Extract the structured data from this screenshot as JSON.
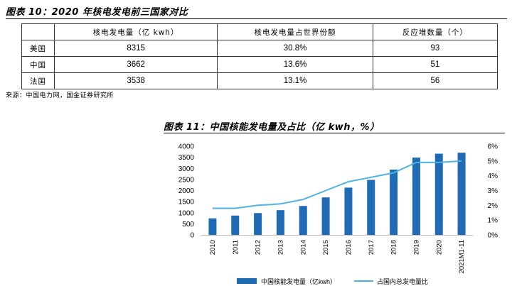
{
  "table10": {
    "title": "图表 10：2020 年核电发电前三国家对比",
    "headers": [
      "",
      "核电发电量（亿 kwh）",
      "核电发电量占世界份额",
      "反应堆数量（个）"
    ],
    "rows": [
      {
        "country": "美国",
        "generation": "8315",
        "share": "30.8%",
        "reactors": "93"
      },
      {
        "country": "中国",
        "generation": "3662",
        "share": "13.6%",
        "reactors": "51"
      },
      {
        "country": "法国",
        "generation": "3538",
        "share": "13.1%",
        "reactors": "56"
      }
    ],
    "source": "来源：中国电力网，国金证券研究所"
  },
  "chart_data": {
    "type": "bar",
    "title": "图表 11：中国核能发电量及占比（亿 kwh，%）",
    "categories": [
      "2010",
      "2011",
      "2012",
      "2013",
      "2014",
      "2015",
      "2016",
      "2017",
      "2018",
      "2019",
      "2020",
      "2021M1-11"
    ],
    "series": [
      {
        "name": "中国核能发电量（亿kwh）",
        "type": "bar",
        "axis": "left",
        "color": "#1f6cb5",
        "values": [
          747,
          872,
          983,
          1115,
          1305,
          1690,
          2132,
          2481,
          2944,
          3487,
          3662,
          3707
        ]
      },
      {
        "name": "占国内总发电量比",
        "type": "line",
        "axis": "right",
        "color": "#4cb3e6",
        "values": [
          1.8,
          1.8,
          2.0,
          2.1,
          2.4,
          3.0,
          3.6,
          3.9,
          4.2,
          4.9,
          4.9,
          5.0
        ]
      }
    ],
    "ylim_left": [
      0,
      4000
    ],
    "yticks_left": [
      "0",
      "500",
      "1000",
      "1500",
      "2000",
      "2500",
      "3000",
      "3500",
      "4000"
    ],
    "ylim_right": [
      0,
      6
    ],
    "yticks_right": [
      "0%",
      "1%",
      "2%",
      "3%",
      "4%",
      "5%",
      "6%"
    ],
    "grid": false,
    "legend_position": "bottom"
  }
}
